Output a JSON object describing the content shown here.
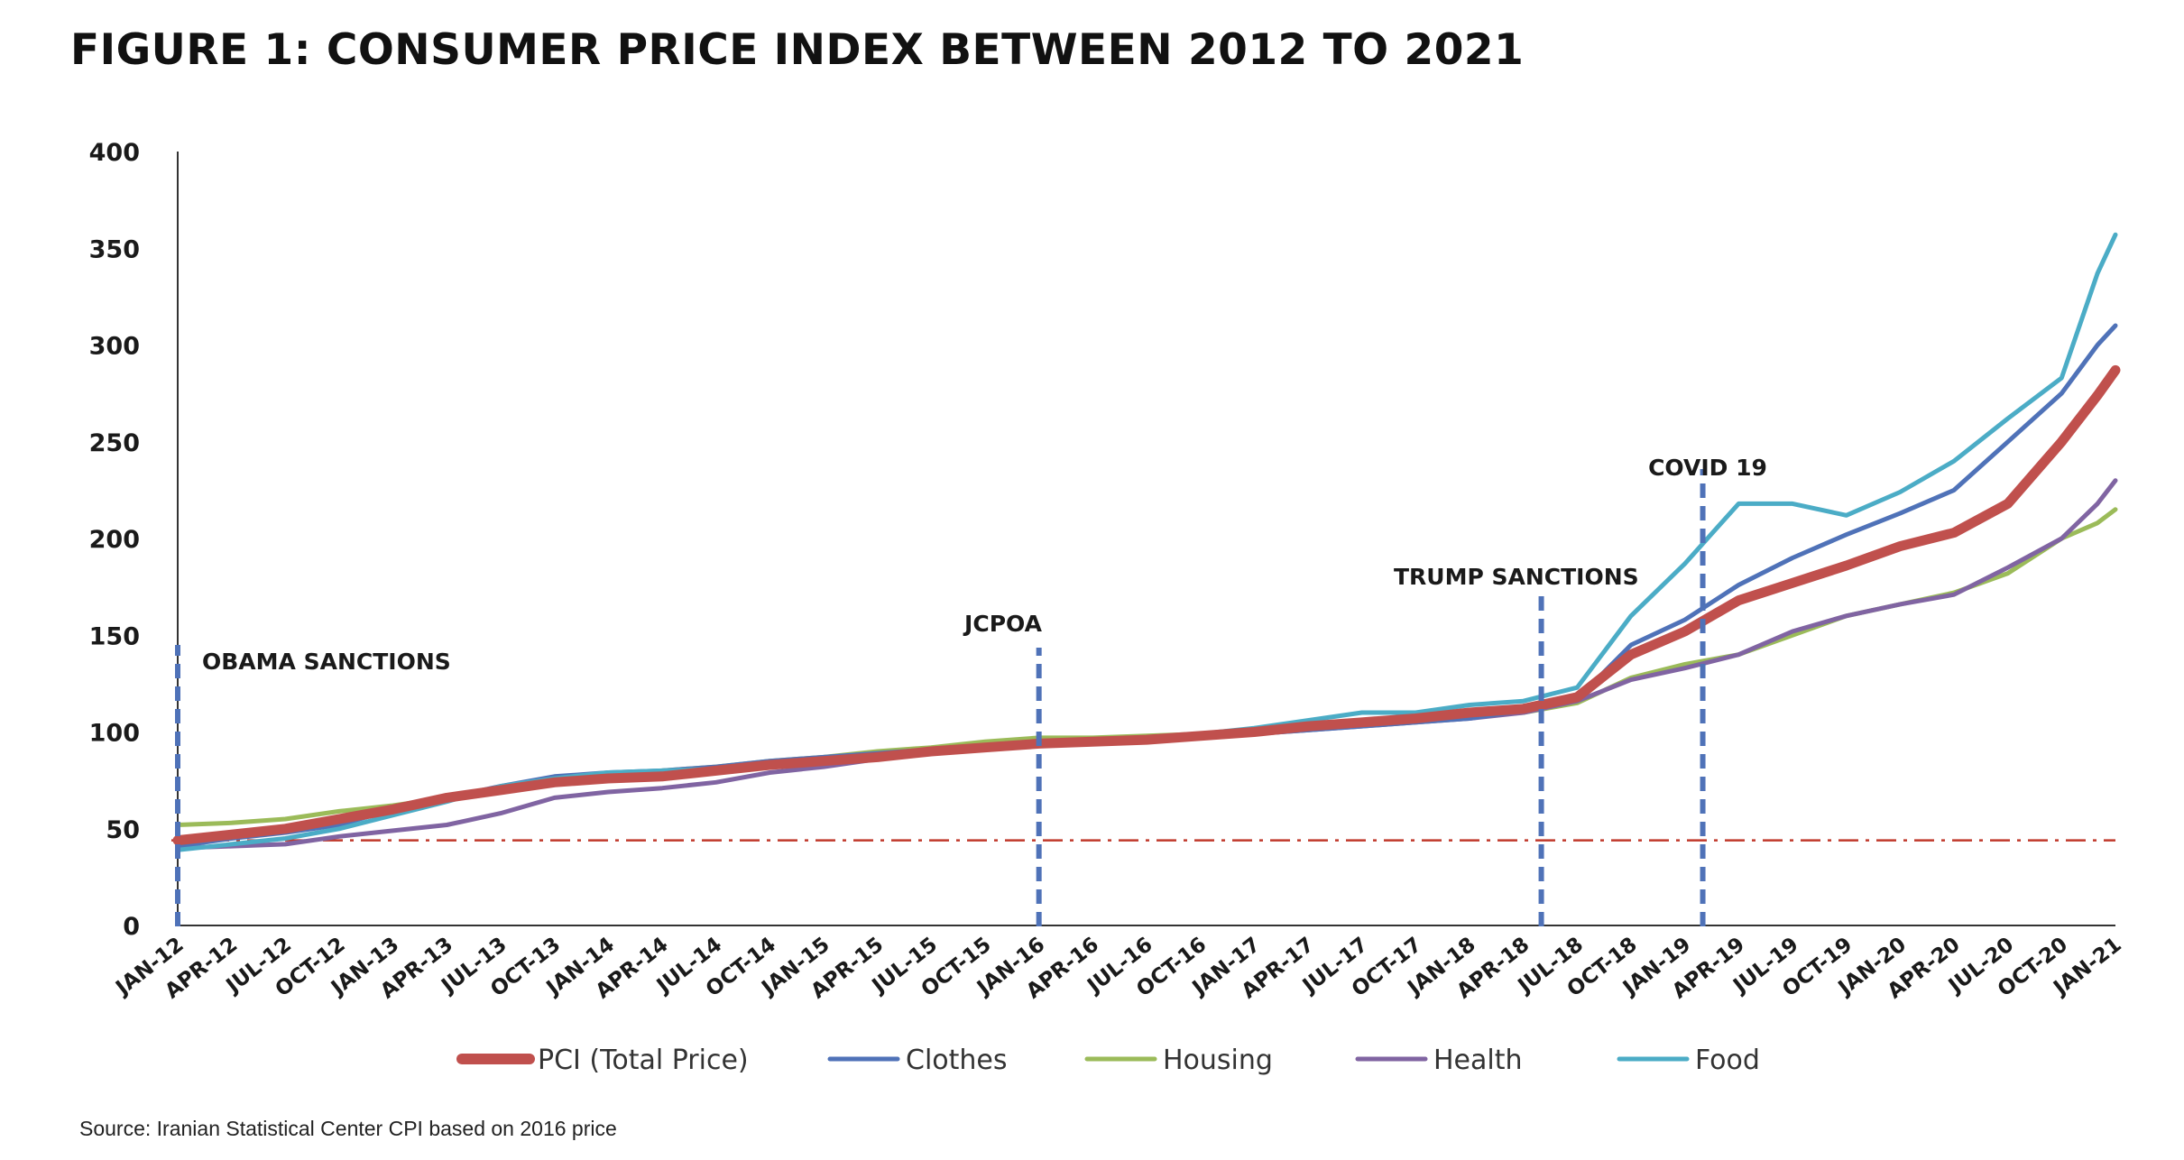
{
  "title": "FIGURE 1: CONSUMER PRICE INDEX BETWEEN 2012 TO 2021",
  "source": "Source: Iranian Statistical Center CPI based on 2016 price",
  "chart_data": {
    "type": "line",
    "title": "FIGURE 1: CONSUMER PRICE INDEX BETWEEN 2012 TO 2021",
    "xlabel": "",
    "ylabel": "",
    "ylim": [
      0,
      400
    ],
    "yticks": [
      0,
      50,
      100,
      150,
      200,
      250,
      300,
      350,
      400
    ],
    "x_tick_labels": [
      "JAN-12",
      "APR-12",
      "JUL-12",
      "OCT-12",
      "JAN-13",
      "APR-13",
      "JUL-13",
      "OCT-13",
      "JAN-14",
      "APR-14",
      "JUL-14",
      "OCT-14",
      "JAN-15",
      "APR-15",
      "JUL-15",
      "OCT-15",
      "JAN-16",
      "APR-16",
      "JUL-16",
      "OCT-16",
      "JAN-17",
      "APR-17",
      "JUL-17",
      "OCT-17",
      "JAN-18",
      "APR-18",
      "JUL-18",
      "OCT-18",
      "JAN-19",
      "APR-19",
      "JUL-19",
      "OCT-19",
      "JAN-20",
      "APR-20",
      "JUL-20",
      "OCT-20",
      "JAN-21"
    ],
    "grid": false,
    "legend_position": "bottom",
    "reference_line": {
      "value": 44,
      "color": "#c0392b",
      "style": "dash-dot"
    },
    "annotations": [
      {
        "label": "OBAMA SANCTIONS",
        "x": "JAN-12"
      },
      {
        "label": "JCPOA",
        "x": "JAN-16"
      },
      {
        "label": "TRUMP SANCTIONS",
        "x": "MAY-18"
      },
      {
        "label": "COVID 19",
        "x": "FEB-19"
      }
    ],
    "series": [
      {
        "name": "PCI (Total Price)",
        "color": "#c0504d",
        "width": 11,
        "points": [
          [
            "JAN-12",
            44
          ],
          [
            "APR-12",
            47
          ],
          [
            "JUL-12",
            50
          ],
          [
            "OCT-12",
            55
          ],
          [
            "JAN-13",
            60
          ],
          [
            "APR-13",
            66
          ],
          [
            "JUL-13",
            70
          ],
          [
            "OCT-13",
            74
          ],
          [
            "JAN-14",
            76
          ],
          [
            "APR-14",
            77
          ],
          [
            "JUL-14",
            80
          ],
          [
            "OCT-14",
            83
          ],
          [
            "JAN-15",
            85
          ],
          [
            "APR-15",
            87
          ],
          [
            "JUL-15",
            90
          ],
          [
            "OCT-15",
            92
          ],
          [
            "JAN-16",
            94
          ],
          [
            "APR-16",
            95
          ],
          [
            "JUL-16",
            96
          ],
          [
            "OCT-16",
            98
          ],
          [
            "JAN-17",
            100
          ],
          [
            "APR-17",
            103
          ],
          [
            "JUL-17",
            105
          ],
          [
            "OCT-17",
            107
          ],
          [
            "JAN-18",
            110
          ],
          [
            "APR-18",
            112
          ],
          [
            "JUL-18",
            118
          ],
          [
            "OCT-18",
            140
          ],
          [
            "JAN-19",
            152
          ],
          [
            "APR-19",
            168
          ],
          [
            "JUL-19",
            177
          ],
          [
            "OCT-19",
            186
          ],
          [
            "JAN-20",
            196
          ],
          [
            "APR-20",
            203
          ],
          [
            "JUL-20",
            218
          ],
          [
            "OCT-20",
            250
          ],
          [
            "DEC-20",
            274
          ],
          [
            "JAN-21",
            287
          ]
        ]
      },
      {
        "name": "Clothes",
        "color": "#4f72b8",
        "width": 5,
        "points": [
          [
            "JAN-12",
            41
          ],
          [
            "APR-12",
            45
          ],
          [
            "JUL-12",
            48
          ],
          [
            "OCT-12",
            52
          ],
          [
            "JAN-13",
            60
          ],
          [
            "APR-13",
            66
          ],
          [
            "JUL-13",
            72
          ],
          [
            "OCT-13",
            77
          ],
          [
            "JAN-14",
            79
          ],
          [
            "APR-14",
            80
          ],
          [
            "JUL-14",
            82
          ],
          [
            "OCT-14",
            85
          ],
          [
            "JAN-15",
            87
          ],
          [
            "APR-15",
            89
          ],
          [
            "JUL-15",
            91
          ],
          [
            "OCT-15",
            92
          ],
          [
            "JAN-16",
            93
          ],
          [
            "APR-16",
            94
          ],
          [
            "JUL-16",
            95
          ],
          [
            "OCT-16",
            97
          ],
          [
            "JAN-17",
            99
          ],
          [
            "APR-17",
            101
          ],
          [
            "JUL-17",
            103
          ],
          [
            "OCT-17",
            105
          ],
          [
            "JAN-18",
            107
          ],
          [
            "APR-18",
            111
          ],
          [
            "JUL-18",
            117
          ],
          [
            "OCT-18",
            145
          ],
          [
            "JAN-19",
            158
          ],
          [
            "APR-19",
            176
          ],
          [
            "JUL-19",
            190
          ],
          [
            "OCT-19",
            202
          ],
          [
            "JAN-20",
            213
          ],
          [
            "APR-20",
            225
          ],
          [
            "JUL-20",
            250
          ],
          [
            "OCT-20",
            275
          ],
          [
            "DEC-20",
            300
          ],
          [
            "JAN-21",
            310
          ]
        ]
      },
      {
        "name": "Housing",
        "color": "#9bbb59",
        "width": 5,
        "points": [
          [
            "JAN-12",
            52
          ],
          [
            "APR-12",
            53
          ],
          [
            "JUL-12",
            55
          ],
          [
            "OCT-12",
            59
          ],
          [
            "JAN-13",
            62
          ],
          [
            "APR-13",
            66
          ],
          [
            "JUL-13",
            70
          ],
          [
            "OCT-13",
            74
          ],
          [
            "JAN-14",
            77
          ],
          [
            "APR-14",
            80
          ],
          [
            "JUL-14",
            82
          ],
          [
            "OCT-14",
            85
          ],
          [
            "JAN-15",
            87
          ],
          [
            "APR-15",
            90
          ],
          [
            "JUL-15",
            92
          ],
          [
            "OCT-15",
            95
          ],
          [
            "JAN-16",
            97
          ],
          [
            "APR-16",
            97
          ],
          [
            "JUL-16",
            98
          ],
          [
            "OCT-16",
            99
          ],
          [
            "JAN-17",
            100
          ],
          [
            "APR-17",
            102
          ],
          [
            "JUL-17",
            104
          ],
          [
            "OCT-17",
            106
          ],
          [
            "JAN-18",
            108
          ],
          [
            "APR-18",
            110
          ],
          [
            "JUL-18",
            115
          ],
          [
            "OCT-18",
            128
          ],
          [
            "JAN-19",
            135
          ],
          [
            "APR-19",
            140
          ],
          [
            "JUL-19",
            150
          ],
          [
            "OCT-19",
            160
          ],
          [
            "JAN-20",
            166
          ],
          [
            "APR-20",
            172
          ],
          [
            "JUL-20",
            182
          ],
          [
            "OCT-20",
            200
          ],
          [
            "DEC-20",
            208
          ],
          [
            "JAN-21",
            215
          ]
        ]
      },
      {
        "name": "Health",
        "color": "#8064a2",
        "width": 5,
        "points": [
          [
            "JAN-12",
            40
          ],
          [
            "APR-12",
            41
          ],
          [
            "JUL-12",
            42
          ],
          [
            "OCT-12",
            46
          ],
          [
            "JAN-13",
            49
          ],
          [
            "APR-13",
            52
          ],
          [
            "JUL-13",
            58
          ],
          [
            "OCT-13",
            66
          ],
          [
            "JAN-14",
            69
          ],
          [
            "APR-14",
            71
          ],
          [
            "JUL-14",
            74
          ],
          [
            "OCT-14",
            79
          ],
          [
            "JAN-15",
            82
          ],
          [
            "APR-15",
            86
          ],
          [
            "JUL-15",
            90
          ],
          [
            "OCT-15",
            92
          ],
          [
            "JAN-16",
            93
          ],
          [
            "APR-16",
            94
          ],
          [
            "JUL-16",
            95
          ],
          [
            "OCT-16",
            97
          ],
          [
            "JAN-17",
            99
          ],
          [
            "APR-17",
            101
          ],
          [
            "JUL-17",
            103
          ],
          [
            "OCT-17",
            105
          ],
          [
            "JAN-18",
            107
          ],
          [
            "APR-18",
            110
          ],
          [
            "JUL-18",
            116
          ],
          [
            "OCT-18",
            127
          ],
          [
            "JAN-19",
            133
          ],
          [
            "APR-19",
            140
          ],
          [
            "JUL-19",
            152
          ],
          [
            "OCT-19",
            160
          ],
          [
            "JAN-20",
            166
          ],
          [
            "APR-20",
            171
          ],
          [
            "JUL-20",
            185
          ],
          [
            "OCT-20",
            200
          ],
          [
            "DEC-20",
            218
          ],
          [
            "JAN-21",
            230
          ]
        ]
      },
      {
        "name": "Food",
        "color": "#4bacc6",
        "width": 5,
        "points": [
          [
            "JAN-12",
            39
          ],
          [
            "APR-12",
            42
          ],
          [
            "JUL-12",
            45
          ],
          [
            "OCT-12",
            50
          ],
          [
            "JAN-13",
            57
          ],
          [
            "APR-13",
            64
          ],
          [
            "JUL-13",
            72
          ],
          [
            "OCT-13",
            76
          ],
          [
            "JAN-14",
            79
          ],
          [
            "APR-14",
            80
          ],
          [
            "JUL-14",
            81
          ],
          [
            "OCT-14",
            84
          ],
          [
            "JAN-15",
            86
          ],
          [
            "APR-15",
            88
          ],
          [
            "JUL-15",
            91
          ],
          [
            "OCT-15",
            91
          ],
          [
            "JAN-16",
            93
          ],
          [
            "APR-16",
            95
          ],
          [
            "JUL-16",
            97
          ],
          [
            "OCT-16",
            99
          ],
          [
            "JAN-17",
            102
          ],
          [
            "APR-17",
            106
          ],
          [
            "JUL-17",
            110
          ],
          [
            "OCT-17",
            110
          ],
          [
            "JAN-18",
            114
          ],
          [
            "APR-18",
            116
          ],
          [
            "JUL-18",
            123
          ],
          [
            "OCT-18",
            160
          ],
          [
            "JAN-19",
            187
          ],
          [
            "APR-19",
            218
          ],
          [
            "JUL-19",
            218
          ],
          [
            "OCT-19",
            212
          ],
          [
            "JAN-20",
            224
          ],
          [
            "APR-20",
            240
          ],
          [
            "JUL-20",
            262
          ],
          [
            "OCT-20",
            283
          ],
          [
            "DEC-20",
            337
          ],
          [
            "JAN-21",
            357
          ]
        ]
      }
    ]
  }
}
